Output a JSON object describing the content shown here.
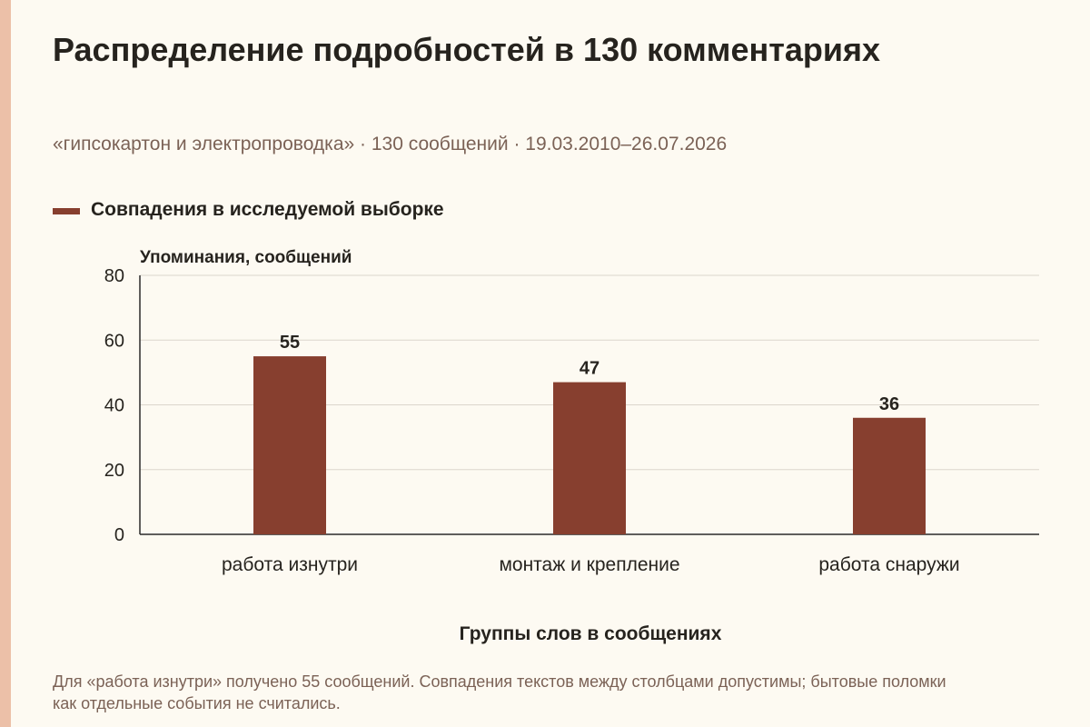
{
  "title": "Распределение подробностей в 130 комментариях",
  "subtitle": "«гипсокартон и электропроводка» · 130 сообщений · 19.03.2010–26.07.2026",
  "note": "Для «работа изнутри» получено 55 сообщений. Совпадения текстов между столбцами допустимы; бытовые поломки как отдельные события не считались.",
  "colors": {
    "bar": "#873f2f",
    "accent_strip": "#ecc0a8",
    "background": "#fdfaf2",
    "grid": "#dcd6cc",
    "text_muted": "#7b6256"
  },
  "chart_data": {
    "type": "bar",
    "categories": [
      "работа изнутри",
      "монтаж и крепление",
      "работа снаружи"
    ],
    "series": [
      {
        "name": "Совпадения в исследуемой выборке",
        "values": [
          55,
          47,
          36
        ]
      }
    ],
    "data_labels": [
      "55",
      "47",
      "36"
    ],
    "xlabel": "Группы слов в сообщениях",
    "ylabel": "Упоминания, сообщений",
    "ylim": [
      0,
      80
    ],
    "yticks": [
      0,
      20,
      40,
      60,
      80
    ],
    "ytick_labels": [
      "0",
      "20",
      "40",
      "60",
      "80"
    ],
    "grid": true,
    "legend": "top-left"
  }
}
